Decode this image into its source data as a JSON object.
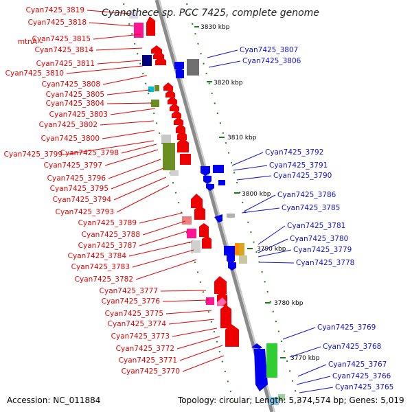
{
  "title": "Cyanothece sp. PCC 7425, complete genome",
  "footer": {
    "accession": "Accession: NC_011884",
    "topology": "Topology: circular; Length: 5,374,574 bp; Genes: 5,019"
  },
  "colors": {
    "forward_gene": "#ee0000",
    "reverse_gene": "#0000ee",
    "backbone": "#888888",
    "tick": "#1a7a1a",
    "left_label": "#e00000",
    "right_label": "#1010d0"
  },
  "scale_labels": [
    "3830 kbp",
    "3820 kbp",
    "3810 kbp",
    "3800 kbp",
    "3790 kbp",
    "3780 kbp",
    "3770 kbp"
  ],
  "left_labels": [
    "Cyan7425_3819",
    "Cyan7425_3818",
    "Cyan7425_3815",
    "mtnA",
    "Cyan7425_3814",
    "Cyan7425_3811",
    "Cyan7425_3810",
    "Cyan7425_3808",
    "Cyan7425_3805",
    "Cyan7425_3804",
    "Cyan7425_3803",
    "Cyan7425_3802",
    "Cyan7425_3800",
    "Cyan7425_3799",
    "Cyan7425_3798",
    "Cyan7425_3797",
    "Cyan7425_3796",
    "Cyan7425_3795",
    "Cyan7425_3794",
    "Cyan7425_3793",
    "Cyan7425_3789",
    "Cyan7425_3788",
    "Cyan7425_3787",
    "Cyan7425_3784",
    "Cyan7425_3783",
    "Cyan7425_3782",
    "Cyan7425_3777",
    "Cyan7425_3776",
    "Cyan7425_3775",
    "Cyan7425_3774",
    "Cyan7425_3773",
    "Cyan7425_3772",
    "Cyan7425_3771",
    "Cyan7425_3770"
  ],
  "right_labels": [
    "Cyan7425_3807",
    "Cyan7425_3806",
    "Cyan7425_3792",
    "Cyan7425_3791",
    "Cyan7425_3790",
    "Cyan7425_3786",
    "Cyan7425_3785",
    "Cyan7425_3781",
    "Cyan7425_3780",
    "Cyan7425_3779",
    "Cyan7425_3778",
    "Cyan7425_3769",
    "Cyan7425_3768",
    "Cyan7425_3767",
    "Cyan7425_3766",
    "Cyan7425_3765"
  ]
}
